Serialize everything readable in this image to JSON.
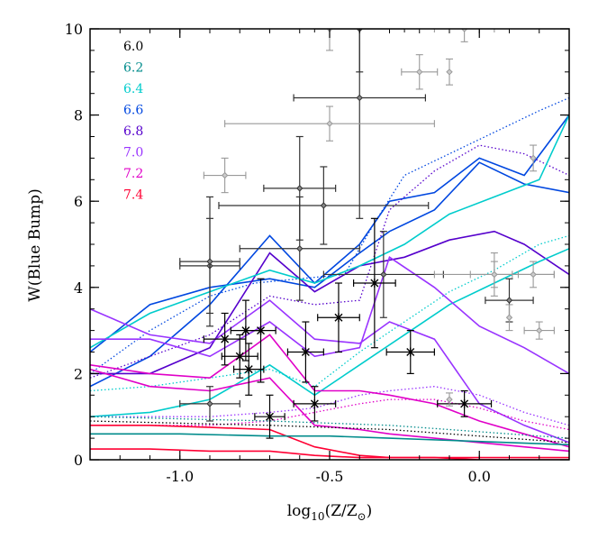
{
  "chart_data": {
    "type": "line",
    "xlabel": "log",
    "xlabel_sub": "10",
    "xlabel_rest": "(Z/Z",
    "xlabel_sun": "⊙",
    "xlabel_end": ")",
    "ylabel": "W(Blue Bump)",
    "xlim": [
      -1.3,
      0.3
    ],
    "ylim": [
      0,
      10
    ],
    "xticks": [
      -1.0,
      -0.5,
      0.0
    ],
    "xtick_labels": [
      "-1.0",
      "-0.5",
      "0.0"
    ],
    "yticks": [
      0,
      2,
      4,
      6,
      8,
      10
    ],
    "ytick_labels": [
      "0",
      "2",
      "4",
      "6",
      "8",
      "10"
    ],
    "legend": [
      {
        "label": "6.0",
        "color": "#000000"
      },
      {
        "label": "6.2",
        "color": "#008b8b"
      },
      {
        "label": "6.4",
        "color": "#00cccc"
      },
      {
        "label": "6.6",
        "color": "#0047e0"
      },
      {
        "label": "6.8",
        "color": "#5500cc"
      },
      {
        "label": "7.0",
        "color": "#9933ff"
      },
      {
        "label": "7.2",
        "color": "#e000c8"
      },
      {
        "label": "7.4",
        "color": "#ff0033"
      }
    ],
    "series": [
      {
        "name": "6.6",
        "color": "#0047e0",
        "style": "solid",
        "x": [
          -1.3,
          -1.1,
          -0.9,
          -0.7,
          -0.55,
          -0.4,
          -0.3,
          -0.15,
          0.0,
          0.15,
          0.3
        ],
        "y": [
          1.7,
          2.4,
          3.6,
          5.2,
          4.1,
          5.0,
          6.0,
          6.2,
          7.0,
          6.6,
          8.0
        ]
      },
      {
        "name": "6.6",
        "color": "#0047e0",
        "style": "solid",
        "x": [
          -1.3,
          -1.1,
          -0.9,
          -0.7,
          -0.55,
          -0.4,
          -0.3,
          -0.15,
          0.0,
          0.15,
          0.3
        ],
        "y": [
          2.5,
          3.6,
          4.0,
          4.2,
          4.0,
          4.8,
          5.3,
          5.8,
          6.9,
          6.4,
          6.2
        ]
      },
      {
        "name": "6.6",
        "color": "#0047e0",
        "style": "dotted",
        "x": [
          -1.3,
          -1.1,
          -0.9,
          -0.75,
          -0.6,
          -0.45,
          -0.35,
          -0.25,
          -0.1,
          0.05,
          0.2,
          0.3
        ],
        "y": [
          2.0,
          3.0,
          3.8,
          4.1,
          4.2,
          4.3,
          5.5,
          6.6,
          7.1,
          7.6,
          8.1,
          8.4
        ]
      },
      {
        "name": "6.8",
        "color": "#5500cc",
        "style": "solid",
        "x": [
          -1.3,
          -1.1,
          -0.9,
          -0.7,
          -0.55,
          -0.4,
          -0.25,
          -0.1,
          0.05,
          0.15,
          0.3
        ],
        "y": [
          2.0,
          2.0,
          2.6,
          4.8,
          3.9,
          4.5,
          4.7,
          5.1,
          5.3,
          5.0,
          4.3
        ]
      },
      {
        "name": "6.8",
        "color": "#5500cc",
        "style": "dotted",
        "x": [
          -1.3,
          -1.1,
          -0.9,
          -0.7,
          -0.55,
          -0.4,
          -0.3,
          -0.15,
          0.0,
          0.15,
          0.3
        ],
        "y": [
          1.9,
          2.4,
          2.9,
          3.8,
          3.6,
          3.7,
          5.8,
          6.7,
          7.3,
          7.1,
          6.6
        ]
      },
      {
        "name": "6.4",
        "color": "#00cccc",
        "style": "solid",
        "x": [
          -1.3,
          -1.1,
          -0.9,
          -0.7,
          -0.55,
          -0.4,
          -0.25,
          -0.1,
          0.05,
          0.2,
          0.3
        ],
        "y": [
          1.0,
          1.1,
          1.4,
          2.2,
          1.5,
          2.2,
          2.9,
          3.6,
          4.1,
          4.6,
          4.9
        ]
      },
      {
        "name": "6.4",
        "color": "#00cccc",
        "style": "solid",
        "x": [
          -1.3,
          -1.1,
          -0.9,
          -0.7,
          -0.55,
          -0.4,
          -0.25,
          -0.1,
          0.05,
          0.2,
          0.3
        ],
        "y": [
          2.6,
          3.4,
          3.9,
          4.4,
          4.1,
          4.5,
          5.0,
          5.7,
          6.1,
          6.5,
          8.0
        ]
      },
      {
        "name": "6.4",
        "color": "#00cccc",
        "style": "dotted",
        "x": [
          -1.3,
          -1.1,
          -0.9,
          -0.7,
          -0.55,
          -0.4,
          -0.25,
          -0.1,
          0.05,
          0.2,
          0.3
        ],
        "y": [
          1.6,
          1.7,
          1.9,
          2.1,
          1.7,
          2.5,
          3.2,
          3.9,
          4.4,
          5.0,
          5.2
        ]
      },
      {
        "name": "7.0",
        "color": "#9933ff",
        "style": "solid",
        "x": [
          -1.3,
          -1.1,
          -0.9,
          -0.7,
          -0.55,
          -0.4,
          -0.3,
          -0.15,
          0.0,
          0.15,
          0.3
        ],
        "y": [
          3.5,
          2.9,
          2.7,
          3.7,
          2.8,
          2.7,
          3.2,
          2.8,
          1.3,
          0.8,
          0.4
        ]
      },
      {
        "name": "7.0",
        "color": "#9933ff",
        "style": "solid",
        "x": [
          -1.3,
          -1.1,
          -0.9,
          -0.7,
          -0.55,
          -0.4,
          -0.3,
          -0.15,
          0.0,
          0.15,
          0.3
        ],
        "y": [
          2.8,
          2.8,
          2.4,
          3.2,
          2.4,
          2.6,
          4.7,
          4.0,
          3.1,
          2.6,
          2.0
        ]
      },
      {
        "name": "7.0",
        "color": "#9933ff",
        "style": "dotted",
        "x": [
          -1.3,
          -1.1,
          -0.9,
          -0.7,
          -0.55,
          -0.4,
          -0.3,
          -0.15,
          0.0,
          0.15,
          0.3
        ],
        "y": [
          1.0,
          1.0,
          1.0,
          1.1,
          1.2,
          1.5,
          1.6,
          1.7,
          1.5,
          1.1,
          0.8
        ]
      },
      {
        "name": "7.2",
        "color": "#e000c8",
        "style": "solid",
        "x": [
          -1.3,
          -1.1,
          -0.9,
          -0.7,
          -0.55,
          -0.4,
          -0.3,
          -0.15,
          0.0,
          0.15,
          0.3
        ],
        "y": [
          2.2,
          2.0,
          1.9,
          2.9,
          1.6,
          1.6,
          1.5,
          1.3,
          0.9,
          0.6,
          0.3
        ]
      },
      {
        "name": "7.2",
        "color": "#e000c8",
        "style": "solid",
        "x": [
          -1.3,
          -1.1,
          -0.9,
          -0.7,
          -0.55,
          -0.4,
          -0.3,
          -0.15,
          0.0,
          0.15,
          0.3
        ],
        "y": [
          2.1,
          1.7,
          1.6,
          1.9,
          0.8,
          0.7,
          0.6,
          0.5,
          0.4,
          0.3,
          0.2
        ]
      },
      {
        "name": "7.2",
        "color": "#e000c8",
        "style": "dotted",
        "x": [
          -1.3,
          -1.1,
          -0.9,
          -0.7,
          -0.55,
          -0.4,
          -0.3,
          -0.15,
          0.0,
          0.15,
          0.3
        ],
        "y": [
          0.8,
          0.8,
          0.8,
          0.9,
          1.1,
          1.3,
          1.4,
          1.4,
          1.2,
          0.9,
          0.7
        ]
      },
      {
        "name": "7.4",
        "color": "#ff0033",
        "style": "solid",
        "x": [
          -1.3,
          -1.1,
          -0.9,
          -0.7,
          -0.55,
          -0.4,
          -0.3,
          -0.15,
          0.0,
          0.15,
          0.3
        ],
        "y": [
          0.8,
          0.8,
          0.75,
          0.7,
          0.3,
          0.1,
          0.05,
          0.05,
          0.05,
          0.05,
          0.05
        ]
      },
      {
        "name": "7.4",
        "color": "#ff0033",
        "style": "solid",
        "x": [
          -1.3,
          -1.1,
          -0.9,
          -0.7,
          -0.55,
          -0.4,
          -0.3,
          -0.15,
          0.0,
          0.15,
          0.3
        ],
        "y": [
          0.25,
          0.25,
          0.2,
          0.2,
          0.1,
          0.05,
          0.05,
          0.05,
          0.0,
          0.0,
          0.0
        ]
      },
      {
        "name": "6.0",
        "color": "#000000",
        "style": "dotted",
        "x": [
          -1.3,
          -1.0,
          -0.7,
          -0.5,
          -0.3,
          -0.1,
          0.1,
          0.3
        ],
        "y": [
          0.9,
          0.85,
          0.8,
          0.75,
          0.7,
          0.6,
          0.5,
          0.4
        ]
      },
      {
        "name": "6.2",
        "color": "#008b8b",
        "style": "dotted",
        "x": [
          -1.3,
          -1.0,
          -0.7,
          -0.5,
          -0.3,
          -0.1,
          0.1,
          0.3
        ],
        "y": [
          1.0,
          0.95,
          0.9,
          0.85,
          0.8,
          0.7,
          0.6,
          0.5
        ]
      },
      {
        "name": "6.2",
        "color": "#008b8b",
        "style": "solid",
        "x": [
          -1.3,
          -1.0,
          -0.7,
          -0.5,
          -0.3,
          -0.1,
          0.1,
          0.3
        ],
        "y": [
          0.6,
          0.6,
          0.55,
          0.55,
          0.5,
          0.45,
          0.4,
          0.35
        ]
      }
    ],
    "observations": [
      {
        "group": "dark-diamond",
        "color": "#333333",
        "points": [
          {
            "x": -0.9,
            "y": 4.5,
            "xerr": 0.1,
            "yerr": 1.1
          },
          {
            "x": -0.9,
            "y": 4.6,
            "xerr": 0.1,
            "yerr": 1.5
          },
          {
            "x": -0.9,
            "y": 1.3,
            "xerr": 0.1,
            "yerr": 0.4
          },
          {
            "x": -0.6,
            "y": 6.3,
            "xerr": 0.12,
            "yerr": 1.2
          },
          {
            "x": -0.6,
            "y": 4.9,
            "xerr": 0.2,
            "yerr": 1.2
          },
          {
            "x": -0.52,
            "y": 5.9,
            "xerr": 0.35,
            "yerr": 0.9
          },
          {
            "x": -0.4,
            "y": 8.4,
            "xerr": 0.22,
            "yerr": 2.8
          },
          {
            "x": -0.32,
            "y": 4.3,
            "xerr": 0.2,
            "yerr": 1.0
          },
          {
            "x": -0.4,
            "y": 10.0,
            "xerr": 0.15,
            "yerr": 1.0
          },
          {
            "x": 0.1,
            "y": 3.7,
            "xerr": 0.08,
            "yerr": 0.5
          }
        ]
      },
      {
        "group": "star",
        "color": "#000000",
        "points": [
          {
            "x": -0.85,
            "y": 2.8,
            "xerr": 0.07,
            "yerr": 0.6
          },
          {
            "x": -0.8,
            "y": 2.4,
            "xerr": 0.06,
            "yerr": 0.5
          },
          {
            "x": -0.78,
            "y": 3.0,
            "xerr": 0.05,
            "yerr": 0.7
          },
          {
            "x": -0.73,
            "y": 3.0,
            "xerr": 0.05,
            "yerr": 1.2
          },
          {
            "x": -0.77,
            "y": 2.1,
            "xerr": 0.05,
            "yerr": 0.6
          },
          {
            "x": -0.7,
            "y": 1.0,
            "xerr": 0.05,
            "yerr": 0.5
          },
          {
            "x": -0.55,
            "y": 1.3,
            "xerr": 0.07,
            "yerr": 0.4
          },
          {
            "x": -0.58,
            "y": 2.5,
            "xerr": 0.06,
            "yerr": 0.7
          },
          {
            "x": -0.47,
            "y": 3.3,
            "xerr": 0.07,
            "yerr": 0.8
          },
          {
            "x": -0.35,
            "y": 4.1,
            "xerr": 0.07,
            "yerr": 1.5
          },
          {
            "x": -0.23,
            "y": 2.5,
            "xerr": 0.08,
            "yerr": 0.5
          },
          {
            "x": -0.05,
            "y": 1.3,
            "xerr": 0.09,
            "yerr": 0.3
          }
        ]
      },
      {
        "group": "gray",
        "color": "#999999",
        "points": [
          {
            "x": -0.85,
            "y": 6.6,
            "xerr": 0.07,
            "yerr": 0.4
          },
          {
            "x": -0.5,
            "y": 7.8,
            "xerr": 0.35,
            "yerr": 0.4
          },
          {
            "x": -0.5,
            "y": 10.0,
            "xerr": 0.2,
            "yerr": 0.5
          },
          {
            "x": -0.1,
            "y": 9.0,
            "xerr": 0.0,
            "yerr": 0.3
          },
          {
            "x": -0.2,
            "y": 9.0,
            "xerr": 0.06,
            "yerr": 0.4
          },
          {
            "x": -0.05,
            "y": 10.0,
            "xerr": 0.1,
            "yerr": 0.3
          },
          {
            "x": 0.05,
            "y": 4.3,
            "xerr": 0.2,
            "yerr": 0.3
          },
          {
            "x": 0.05,
            "y": 4.3,
            "xerr": 0.08,
            "yerr": 0.5
          },
          {
            "x": 0.18,
            "y": 4.3,
            "xerr": 0.07,
            "yerr": 0.3
          },
          {
            "x": 0.18,
            "y": 7.0,
            "xerr": 0.0,
            "yerr": 0.3
          },
          {
            "x": 0.1,
            "y": 3.3,
            "xerr": 0.0,
            "yerr": 0.3
          },
          {
            "x": 0.2,
            "y": 3.0,
            "xerr": 0.05,
            "yerr": 0.2
          },
          {
            "x": -0.1,
            "y": 1.4,
            "xerr": 0.0,
            "yerr": 0.15
          }
        ]
      }
    ]
  }
}
